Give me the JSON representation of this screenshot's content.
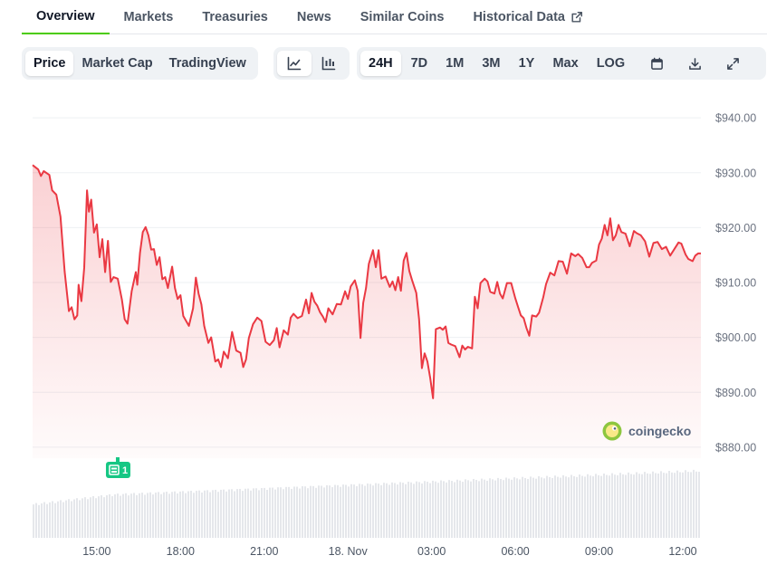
{
  "tabs": [
    {
      "label": "Overview",
      "active": true
    },
    {
      "label": "Markets"
    },
    {
      "label": "Treasuries"
    },
    {
      "label": "News"
    },
    {
      "label": "Similar Coins"
    },
    {
      "label": "Historical Data",
      "external": true
    }
  ],
  "chart_modes": [
    {
      "label": "Price",
      "active": true
    },
    {
      "label": "Market Cap"
    },
    {
      "label": "TradingView"
    }
  ],
  "chart_styles": [
    {
      "icon": "line-chart-icon",
      "active": true
    },
    {
      "icon": "candlestick-icon"
    }
  ],
  "ranges": [
    {
      "label": "24H",
      "active": true
    },
    {
      "label": "7D"
    },
    {
      "label": "1M"
    },
    {
      "label": "3M"
    },
    {
      "label": "1Y"
    },
    {
      "label": "Max"
    },
    {
      "label": "LOG"
    }
  ],
  "tools": [
    {
      "icon": "calendar-icon"
    },
    {
      "icon": "download-icon"
    },
    {
      "icon": "expand-icon"
    }
  ],
  "colors": {
    "accent_tab": "#4bcc00",
    "price_line": "#ea3943",
    "badge": "#16c784",
    "volume": "#e5e7eb"
  },
  "watermark": "coingecko",
  "badge": {
    "count": "1",
    "icon": "news-icon",
    "x": "15:45"
  },
  "chart_data": {
    "type": "line",
    "y_unit_prefix": "$",
    "ylim": [
      878,
      943
    ],
    "yticks": [
      880,
      890,
      900,
      910,
      920,
      930,
      940
    ],
    "ytick_labels": [
      "$880.00",
      "$890.00",
      "$900.00",
      "$910.00",
      "$920.00",
      "$930.00",
      "$940.00"
    ],
    "x_range_hours": [
      12.7,
      36.65
    ],
    "xticks": [
      15,
      18,
      21,
      24,
      27,
      30,
      33,
      36
    ],
    "xtick_labels": [
      "15:00",
      "18:00",
      "21:00",
      "18. Nov",
      "03:00",
      "06:00",
      "09:00",
      "12:00"
    ],
    "grid": true,
    "price": [
      [
        12.7,
        931.4
      ],
      [
        12.9,
        930.6
      ],
      [
        13.0,
        929.4
      ],
      [
        13.1,
        930.3
      ],
      [
        13.3,
        929.6
      ],
      [
        13.4,
        926.8
      ],
      [
        13.55,
        926.0
      ],
      [
        13.7,
        922.0
      ],
      [
        13.85,
        912.0
      ],
      [
        14.0,
        904.8
      ],
      [
        14.1,
        905.5
      ],
      [
        14.2,
        903.3
      ],
      [
        14.3,
        904.0
      ],
      [
        14.35,
        909.6
      ],
      [
        14.45,
        906.6
      ],
      [
        14.55,
        912.7
      ],
      [
        14.65,
        926.8
      ],
      [
        14.72,
        922.9
      ],
      [
        14.8,
        925.1
      ],
      [
        14.9,
        919.1
      ],
      [
        15.0,
        920.6
      ],
      [
        15.1,
        914.6
      ],
      [
        15.2,
        917.9
      ],
      [
        15.3,
        911.9
      ],
      [
        15.4,
        917.6
      ],
      [
        15.5,
        910.1
      ],
      [
        15.6,
        911.0
      ],
      [
        15.75,
        910.7
      ],
      [
        15.9,
        906.9
      ],
      [
        16.0,
        903.3
      ],
      [
        16.1,
        902.5
      ],
      [
        16.25,
        908.4
      ],
      [
        16.4,
        911.9
      ],
      [
        16.45,
        909.6
      ],
      [
        16.55,
        915.4
      ],
      [
        16.65,
        919.2
      ],
      [
        16.75,
        920.1
      ],
      [
        16.85,
        918.6
      ],
      [
        16.95,
        916.0
      ],
      [
        17.05,
        916.1
      ],
      [
        17.15,
        913.2
      ],
      [
        17.25,
        914.6
      ],
      [
        17.35,
        910.6
      ],
      [
        17.45,
        911.0
      ],
      [
        17.55,
        909.0
      ],
      [
        17.7,
        912.9
      ],
      [
        17.8,
        909.0
      ],
      [
        17.9,
        907.0
      ],
      [
        18.0,
        907.7
      ],
      [
        18.1,
        903.9
      ],
      [
        18.3,
        902.1
      ],
      [
        18.45,
        905.3
      ],
      [
        18.55,
        910.9
      ],
      [
        18.65,
        908.0
      ],
      [
        18.75,
        906.0
      ],
      [
        18.85,
        902.1
      ],
      [
        19.0,
        899.0
      ],
      [
        19.1,
        900.0
      ],
      [
        19.25,
        895.6
      ],
      [
        19.35,
        896.0
      ],
      [
        19.45,
        894.6
      ],
      [
        19.55,
        897.4
      ],
      [
        19.7,
        896.2
      ],
      [
        19.85,
        901.0
      ],
      [
        20.0,
        897.6
      ],
      [
        20.15,
        897.2
      ],
      [
        20.25,
        894.6
      ],
      [
        20.35,
        896.0
      ],
      [
        20.45,
        899.9
      ],
      [
        20.6,
        902.4
      ],
      [
        20.75,
        903.6
      ],
      [
        20.9,
        903.0
      ],
      [
        21.05,
        899.2
      ],
      [
        21.2,
        898.6
      ],
      [
        21.35,
        899.5
      ],
      [
        21.45,
        901.7
      ],
      [
        21.55,
        898.2
      ],
      [
        21.7,
        901.3
      ],
      [
        21.85,
        900.5
      ],
      [
        21.95,
        903.6
      ],
      [
        22.05,
        904.3
      ],
      [
        22.2,
        903.5
      ],
      [
        22.35,
        903.9
      ],
      [
        22.5,
        906.9
      ],
      [
        22.6,
        904.4
      ],
      [
        22.7,
        908.1
      ],
      [
        22.8,
        906.5
      ],
      [
        22.9,
        905.8
      ],
      [
        23.0,
        904.6
      ],
      [
        23.1,
        903.8
      ],
      [
        23.2,
        902.8
      ],
      [
        23.3,
        905.3
      ],
      [
        23.45,
        904.2
      ],
      [
        23.6,
        906.1
      ],
      [
        23.75,
        906.0
      ],
      [
        23.9,
        908.4
      ],
      [
        24.0,
        907.0
      ],
      [
        24.1,
        909.3
      ],
      [
        24.25,
        910.4
      ],
      [
        24.35,
        908.5
      ],
      [
        24.45,
        899.9
      ],
      [
        24.55,
        906.3
      ],
      [
        24.65,
        909.0
      ],
      [
        24.75,
        913.4
      ],
      [
        24.9,
        915.9
      ],
      [
        25.0,
        912.8
      ],
      [
        25.1,
        915.9
      ],
      [
        25.2,
        910.7
      ],
      [
        25.35,
        911.1
      ],
      [
        25.5,
        909.2
      ],
      [
        25.6,
        910.2
      ],
      [
        25.7,
        908.6
      ],
      [
        25.8,
        911.0
      ],
      [
        25.9,
        908.5
      ],
      [
        26.0,
        914.0
      ],
      [
        26.1,
        915.4
      ],
      [
        26.2,
        912.1
      ],
      [
        26.3,
        910.4
      ],
      [
        26.45,
        908.1
      ],
      [
        26.55,
        903.3
      ],
      [
        26.65,
        894.4
      ],
      [
        26.75,
        897.1
      ],
      [
        26.85,
        895.6
      ],
      [
        26.95,
        892.6
      ],
      [
        27.05,
        888.9
      ],
      [
        27.15,
        901.5
      ],
      [
        27.3,
        901.8
      ],
      [
        27.4,
        901.4
      ],
      [
        27.5,
        902.0
      ],
      [
        27.6,
        899.0
      ],
      [
        27.7,
        898.7
      ],
      [
        27.85,
        898.4
      ],
      [
        28.0,
        896.4
      ],
      [
        28.1,
        898.5
      ],
      [
        28.2,
        897.8
      ],
      [
        28.3,
        898.3
      ],
      [
        28.45,
        898.0
      ],
      [
        28.55,
        907.4
      ],
      [
        28.65,
        905.3
      ],
      [
        28.75,
        909.9
      ],
      [
        28.9,
        910.7
      ],
      [
        29.0,
        910.2
      ],
      [
        29.1,
        908.3
      ],
      [
        29.25,
        908.0
      ],
      [
        29.35,
        910.1
      ],
      [
        29.45,
        908.0
      ],
      [
        29.55,
        907.1
      ],
      [
        29.7,
        909.9
      ],
      [
        29.85,
        909.9
      ],
      [
        30.0,
        907.1
      ],
      [
        30.1,
        905.5
      ],
      [
        30.2,
        904.0
      ],
      [
        30.3,
        903.5
      ],
      [
        30.4,
        901.7
      ],
      [
        30.5,
        900.3
      ],
      [
        30.6,
        904.0
      ],
      [
        30.75,
        903.8
      ],
      [
        30.85,
        904.5
      ],
      [
        31.0,
        907.3
      ],
      [
        31.1,
        909.7
      ],
      [
        31.25,
        911.8
      ],
      [
        31.4,
        911.3
      ],
      [
        31.55,
        913.9
      ],
      [
        31.7,
        913.8
      ],
      [
        31.85,
        911.6
      ],
      [
        32.0,
        915.3
      ],
      [
        32.15,
        914.8
      ],
      [
        32.25,
        915.2
      ],
      [
        32.4,
        914.5
      ],
      [
        32.55,
        912.8
      ],
      [
        32.65,
        912.8
      ],
      [
        32.75,
        913.6
      ],
      [
        32.9,
        914.0
      ],
      [
        33.0,
        916.9
      ],
      [
        33.1,
        918.0
      ],
      [
        33.2,
        920.5
      ],
      [
        33.3,
        918.6
      ],
      [
        33.4,
        921.7
      ],
      [
        33.5,
        917.7
      ],
      [
        33.6,
        918.6
      ],
      [
        33.7,
        920.5
      ],
      [
        33.8,
        919.2
      ],
      [
        33.95,
        918.9
      ],
      [
        34.1,
        916.6
      ],
      [
        34.25,
        919.4
      ],
      [
        34.35,
        919.0
      ],
      [
        34.5,
        918.6
      ],
      [
        34.65,
        917.5
      ],
      [
        34.8,
        914.7
      ],
      [
        34.95,
        917.2
      ],
      [
        35.1,
        917.4
      ],
      [
        35.25,
        916.1
      ],
      [
        35.4,
        916.5
      ],
      [
        35.55,
        914.9
      ],
      [
        35.7,
        916.1
      ],
      [
        35.85,
        917.3
      ],
      [
        35.95,
        917.1
      ],
      [
        36.1,
        915.1
      ],
      [
        36.2,
        914.3
      ],
      [
        36.35,
        913.9
      ],
      [
        36.45,
        914.9
      ],
      [
        36.55,
        915.3
      ],
      [
        36.65,
        915.3
      ]
    ]
  }
}
